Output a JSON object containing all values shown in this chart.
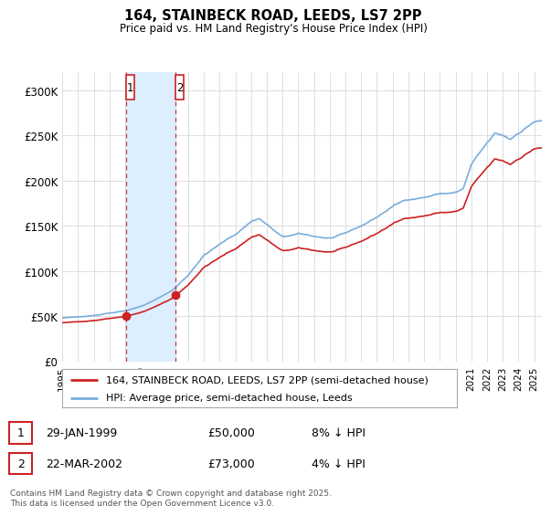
{
  "title_line1": "164, STAINBECK ROAD, LEEDS, LS7 2PP",
  "title_line2": "Price paid vs. HM Land Registry's House Price Index (HPI)",
  "ylim": [
    0,
    320000
  ],
  "yticks": [
    0,
    50000,
    100000,
    150000,
    200000,
    250000,
    300000
  ],
  "ytick_labels": [
    "£0",
    "£50K",
    "£100K",
    "£150K",
    "£200K",
    "£250K",
    "£300K"
  ],
  "hpi_color": "#7aaddc",
  "price_color": "#cc2222",
  "shade_color": "#ddeeff",
  "legend_label_price": "164, STAINBECK ROAD, LEEDS, LS7 2PP (semi-detached house)",
  "legend_label_hpi": "HPI: Average price, semi-detached house, Leeds",
  "transaction1_date": "29-JAN-1999",
  "transaction1_price": "£50,000",
  "transaction1_info": "8% ↓ HPI",
  "transaction1_year": 1999.08,
  "transaction1_value": 50000,
  "transaction2_date": "22-MAR-2002",
  "transaction2_price": "£73,000",
  "transaction2_info": "4% ↓ HPI",
  "transaction2_year": 2002.22,
  "transaction2_value": 73000,
  "footer": "Contains HM Land Registry data © Crown copyright and database right 2025.\nThis data is licensed under the Open Government Licence v3.0.",
  "background_color": "#ffffff",
  "plot_bg_color": "#ffffff",
  "grid_color": "#dddddd"
}
